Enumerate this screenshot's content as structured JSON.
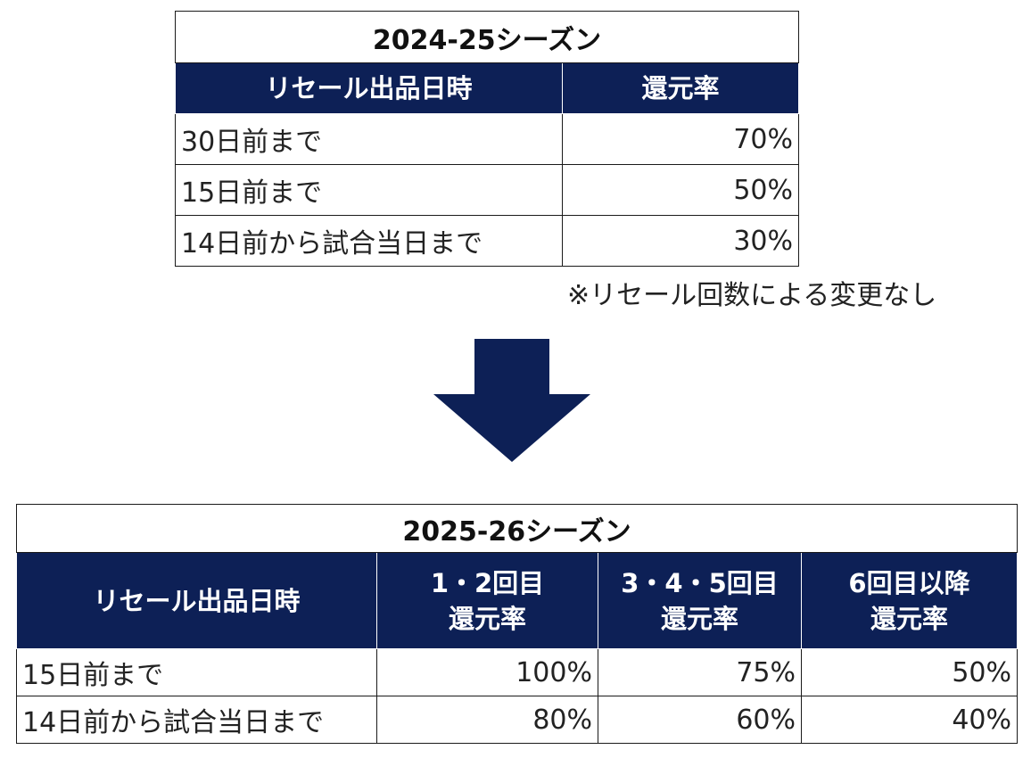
{
  "table_2024": {
    "title": "2024-25シーズン",
    "headers": [
      "リセール出品日時",
      "還元率"
    ],
    "rows": [
      {
        "label": "30日前まで",
        "value": "70%"
      },
      {
        "label": "15日前まで",
        "value": "50%"
      },
      {
        "label": "14日前から試合当日まで",
        "value": "30%"
      }
    ],
    "note": "※リセール回数による変更なし"
  },
  "arrow": {
    "icon": "down-arrow-icon",
    "color": "#0d2056"
  },
  "table_2025": {
    "title": "2025-26シーズン",
    "headers": {
      "col1": "リセール出品日時",
      "col2_line1": "1・2回目",
      "col2_line2": "還元率",
      "col3_line1": "3・4・5回目",
      "col3_line2": "還元率",
      "col4_line1": "6回目以降",
      "col4_line2": "還元率"
    },
    "rows": [
      {
        "label": "15日前まで",
        "values": [
          "100%",
          "75%",
          "50%"
        ]
      },
      {
        "label": "14日前から試合当日まで",
        "values": [
          "80%",
          "60%",
          "40%"
        ]
      }
    ]
  },
  "colors": {
    "header_bg": "#0d2056",
    "header_text": "#ffffff",
    "border": "#1a1a1a"
  }
}
